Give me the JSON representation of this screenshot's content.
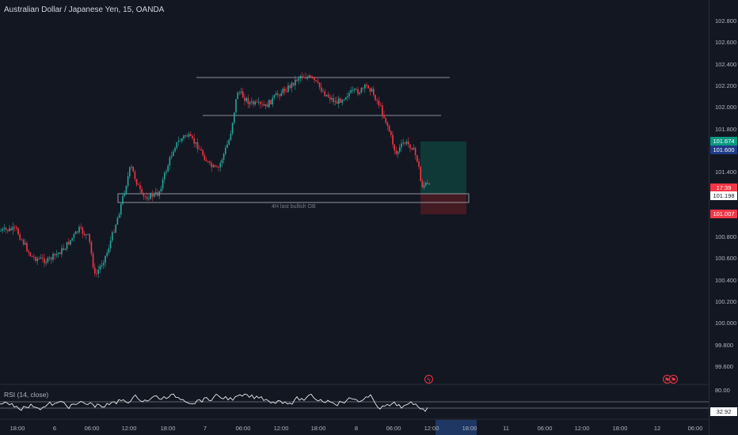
{
  "header": {
    "symbol_title": "Australian Dollar / Japanese Yen, 15, OANDA"
  },
  "rsi": {
    "title": "RSI (14, close)",
    "upper_level": "80.00",
    "value_label": "32.92"
  },
  "price_axis": {
    "ticks": [
      "102.800",
      "102.600",
      "102.400",
      "102.200",
      "102.000",
      "101.800",
      "101.600",
      "101.400",
      "101.200",
      "101.000",
      "100.800",
      "100.600",
      "100.400",
      "100.200",
      "100.000",
      "99.800",
      "99.600"
    ],
    "labels": {
      "take_profit": "101.674",
      "take_profit_sub": "101.600",
      "countdown": "17:39",
      "last_price": "101.198",
      "stop_loss": "101.007"
    }
  },
  "time_axis": {
    "ticks": [
      "18:00",
      "6",
      "06:00",
      "12:00",
      "18:00",
      "7",
      "06:00",
      "12:00",
      "18:00",
      "8",
      "06:00",
      "12:00",
      "18:00",
      "11",
      "06:00",
      "12:00",
      "18:00",
      "12",
      "06:00"
    ]
  },
  "annotations": {
    "ob_label": "4H last bullish OB"
  },
  "colors": {
    "background": "#131722",
    "bull": "#26a69a",
    "bear": "#f23645",
    "tp_zone": "#0f3d3a",
    "sl_zone": "#4a1b24",
    "rsi_line": "#ffffff",
    "time_highlight": "#1f3763",
    "price_tag_blue": "#1f3b8a"
  },
  "icons": {
    "event_markers": [
      "flash-icon",
      "flag-icon"
    ]
  }
}
